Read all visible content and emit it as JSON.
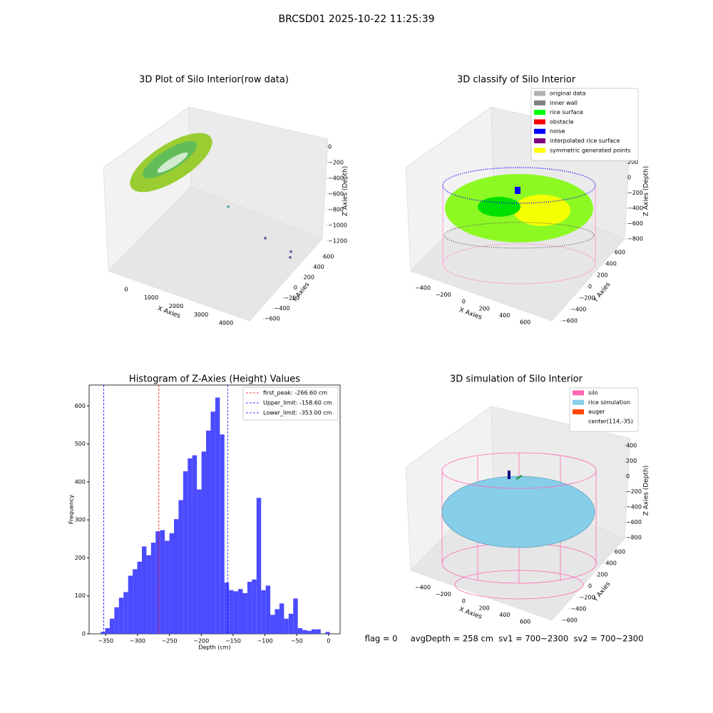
{
  "title": "BRCSD01 2025-10-22 11:25:39",
  "footer": "flag = 0     avgDepth = 258 cm  sv1 = 700~2300  sv2 = 700~2300",
  "chart_data": [
    {
      "type": "scatter3d",
      "title": "3D Plot of Silo Interior(row data)",
      "xlabel": "X Axies",
      "ylabel": "Y Axies",
      "zlabel": "Z Axies (Depth)",
      "xlim": [
        -500,
        4500
      ],
      "xticks": [
        0,
        1000,
        2000,
        3000,
        4000
      ],
      "ylim": [
        -700,
        700
      ],
      "yticks": [
        {
          "value": -600,
          "label": "−600"
        },
        {
          "value": -400,
          "label": "−400"
        },
        {
          "value": -200,
          "label": "−200"
        },
        0,
        200,
        400,
        600
      ],
      "zlim": [
        -1300,
        100
      ],
      "zticks": [
        0,
        {
          "value": -200,
          "label": "−200"
        },
        {
          "value": -400,
          "label": "−400"
        },
        {
          "value": -600,
          "label": "−600"
        },
        {
          "value": -800,
          "label": "−800"
        },
        {
          "value": -1000,
          "label": "−1000"
        },
        {
          "value": -1200,
          "label": "−1200"
        }
      ]
    },
    {
      "type": "scatter3d",
      "title": "3D classify of Silo Interior",
      "xlabel": "X Axies",
      "ylabel": "Y Axies",
      "zlabel": "Z Axies (Depth)",
      "xlim": [
        -500,
        700
      ],
      "xticks": [
        {
          "value": -400,
          "label": "−400"
        },
        {
          "value": -200,
          "label": "−200"
        },
        0,
        200,
        400,
        600
      ],
      "ylim": [
        -700,
        700
      ],
      "yticks": [
        {
          "value": -600,
          "label": "−600"
        },
        {
          "value": -400,
          "label": "−400"
        },
        {
          "value": -200,
          "label": "−200"
        },
        0,
        200,
        400,
        600
      ],
      "zlim": [
        -900,
        500
      ],
      "zticks": [
        400,
        200,
        0,
        {
          "value": -200,
          "label": "−200"
        },
        {
          "value": -400,
          "label": "−400"
        },
        {
          "value": -600,
          "label": "−600"
        },
        {
          "value": -800,
          "label": "−800"
        }
      ],
      "legend": [
        {
          "name": "original data",
          "color": "#b0b0b0"
        },
        {
          "name": "inner wall",
          "color": "#808080"
        },
        {
          "name": "rice surface",
          "color": "#00ff00"
        },
        {
          "name": "obstacle",
          "color": "#ff0000"
        },
        {
          "name": "noise",
          "color": "#0000ff"
        },
        {
          "name": "interpolated rice surface",
          "color": "#800080"
        },
        {
          "name": "symmetric generated points",
          "color": "#ffff00"
        }
      ]
    },
    {
      "type": "histogram",
      "title": "Histogram of Z-Axies (Height) Values",
      "xlabel": "Depth (cm)",
      "ylabel": "Frequency",
      "color": "#4b4bff",
      "bins": [
        -358,
        -350.8,
        -343.6,
        -336.4,
        -329.2,
        -322,
        -314.8,
        -307.6,
        -300.4,
        -293.2,
        -286,
        -278.8,
        -271.6,
        -264.4,
        -257.2,
        -250,
        -242.8,
        -235.6,
        -228.4,
        -221.2,
        -214,
        -206.8,
        -199.6,
        -192.4,
        -185.2,
        -178,
        -170.8,
        -163.6,
        -156.4,
        -149.2,
        -142,
        -134.8,
        -127.6,
        -120.4,
        -113.2,
        -106,
        -98.8,
        -91.6,
        -84.4,
        -77.2,
        -70,
        -62.8,
        -55.6,
        -48.4,
        -41.2,
        -34,
        -26.8,
        -19.6,
        -12.4,
        -5.2,
        2
      ],
      "counts": [
        5,
        15,
        40,
        70,
        95,
        110,
        153,
        170,
        190,
        230,
        207,
        240,
        270,
        273,
        245,
        265,
        302,
        352,
        428,
        462,
        470,
        380,
        480,
        535,
        585,
        622,
        525,
        135,
        115,
        112,
        118,
        107,
        137,
        143,
        358,
        115,
        127,
        50,
        65,
        80,
        40,
        53,
        93,
        15,
        10,
        8,
        12,
        12,
        0,
        5
      ],
      "xlim": [
        -376,
        18
      ],
      "xticks": [
        {
          "value": -350,
          "label": "−350"
        },
        {
          "value": -300,
          "label": "−300"
        },
        {
          "value": -250,
          "label": "−250"
        },
        {
          "value": -200,
          "label": "−200"
        },
        {
          "value": -150,
          "label": "−150"
        },
        {
          "value": -100,
          "label": "−100"
        },
        {
          "value": -50,
          "label": "−50"
        },
        0
      ],
      "ylim": [
        0,
        655
      ],
      "yticks": [
        0,
        100,
        200,
        300,
        400,
        500,
        600
      ],
      "vlines": [
        {
          "name": "first_peak: -266.60 cm",
          "value": -266.6,
          "color": "#ff0000"
        },
        {
          "name": "Upper_limit: -158.60 cm",
          "value": -158.6,
          "color": "#0000ff"
        },
        {
          "name": "Lower_limit: -353.00 cm",
          "value": -353,
          "color": "#0000ff"
        }
      ]
    },
    {
      "type": "surface3d",
      "title": "3D simulation of Silo Interior",
      "xlabel": "X Axies",
      "ylabel": "Y Axies",
      "zlabel": "Z Axies (Depth)",
      "xlim": [
        -500,
        700
      ],
      "xticks": [
        {
          "value": -400,
          "label": "−400"
        },
        {
          "value": -200,
          "label": "−200"
        },
        0,
        200,
        400,
        600
      ],
      "ylim": [
        -700,
        700
      ],
      "yticks": [
        {
          "value": -600,
          "label": "−600"
        },
        {
          "value": -400,
          "label": "−400"
        },
        {
          "value": -200,
          "label": "−200"
        },
        0,
        200,
        400,
        600
      ],
      "zlim": [
        -900,
        500
      ],
      "zticks": [
        400,
        200,
        0,
        {
          "value": -200,
          "label": "−200"
        },
        {
          "value": -400,
          "label": "−400"
        },
        {
          "value": -600,
          "label": "−600"
        },
        {
          "value": -800,
          "label": "−800"
        }
      ],
      "legend": [
        {
          "name": "silo",
          "color": "#ff69b4"
        },
        {
          "name": "rice simulation",
          "color": "#87ceeb"
        },
        {
          "name": "auger",
          "color": "#ff4500"
        },
        {
          "name": "center(114,-35)",
          "color": "#ffffff"
        }
      ]
    }
  ]
}
